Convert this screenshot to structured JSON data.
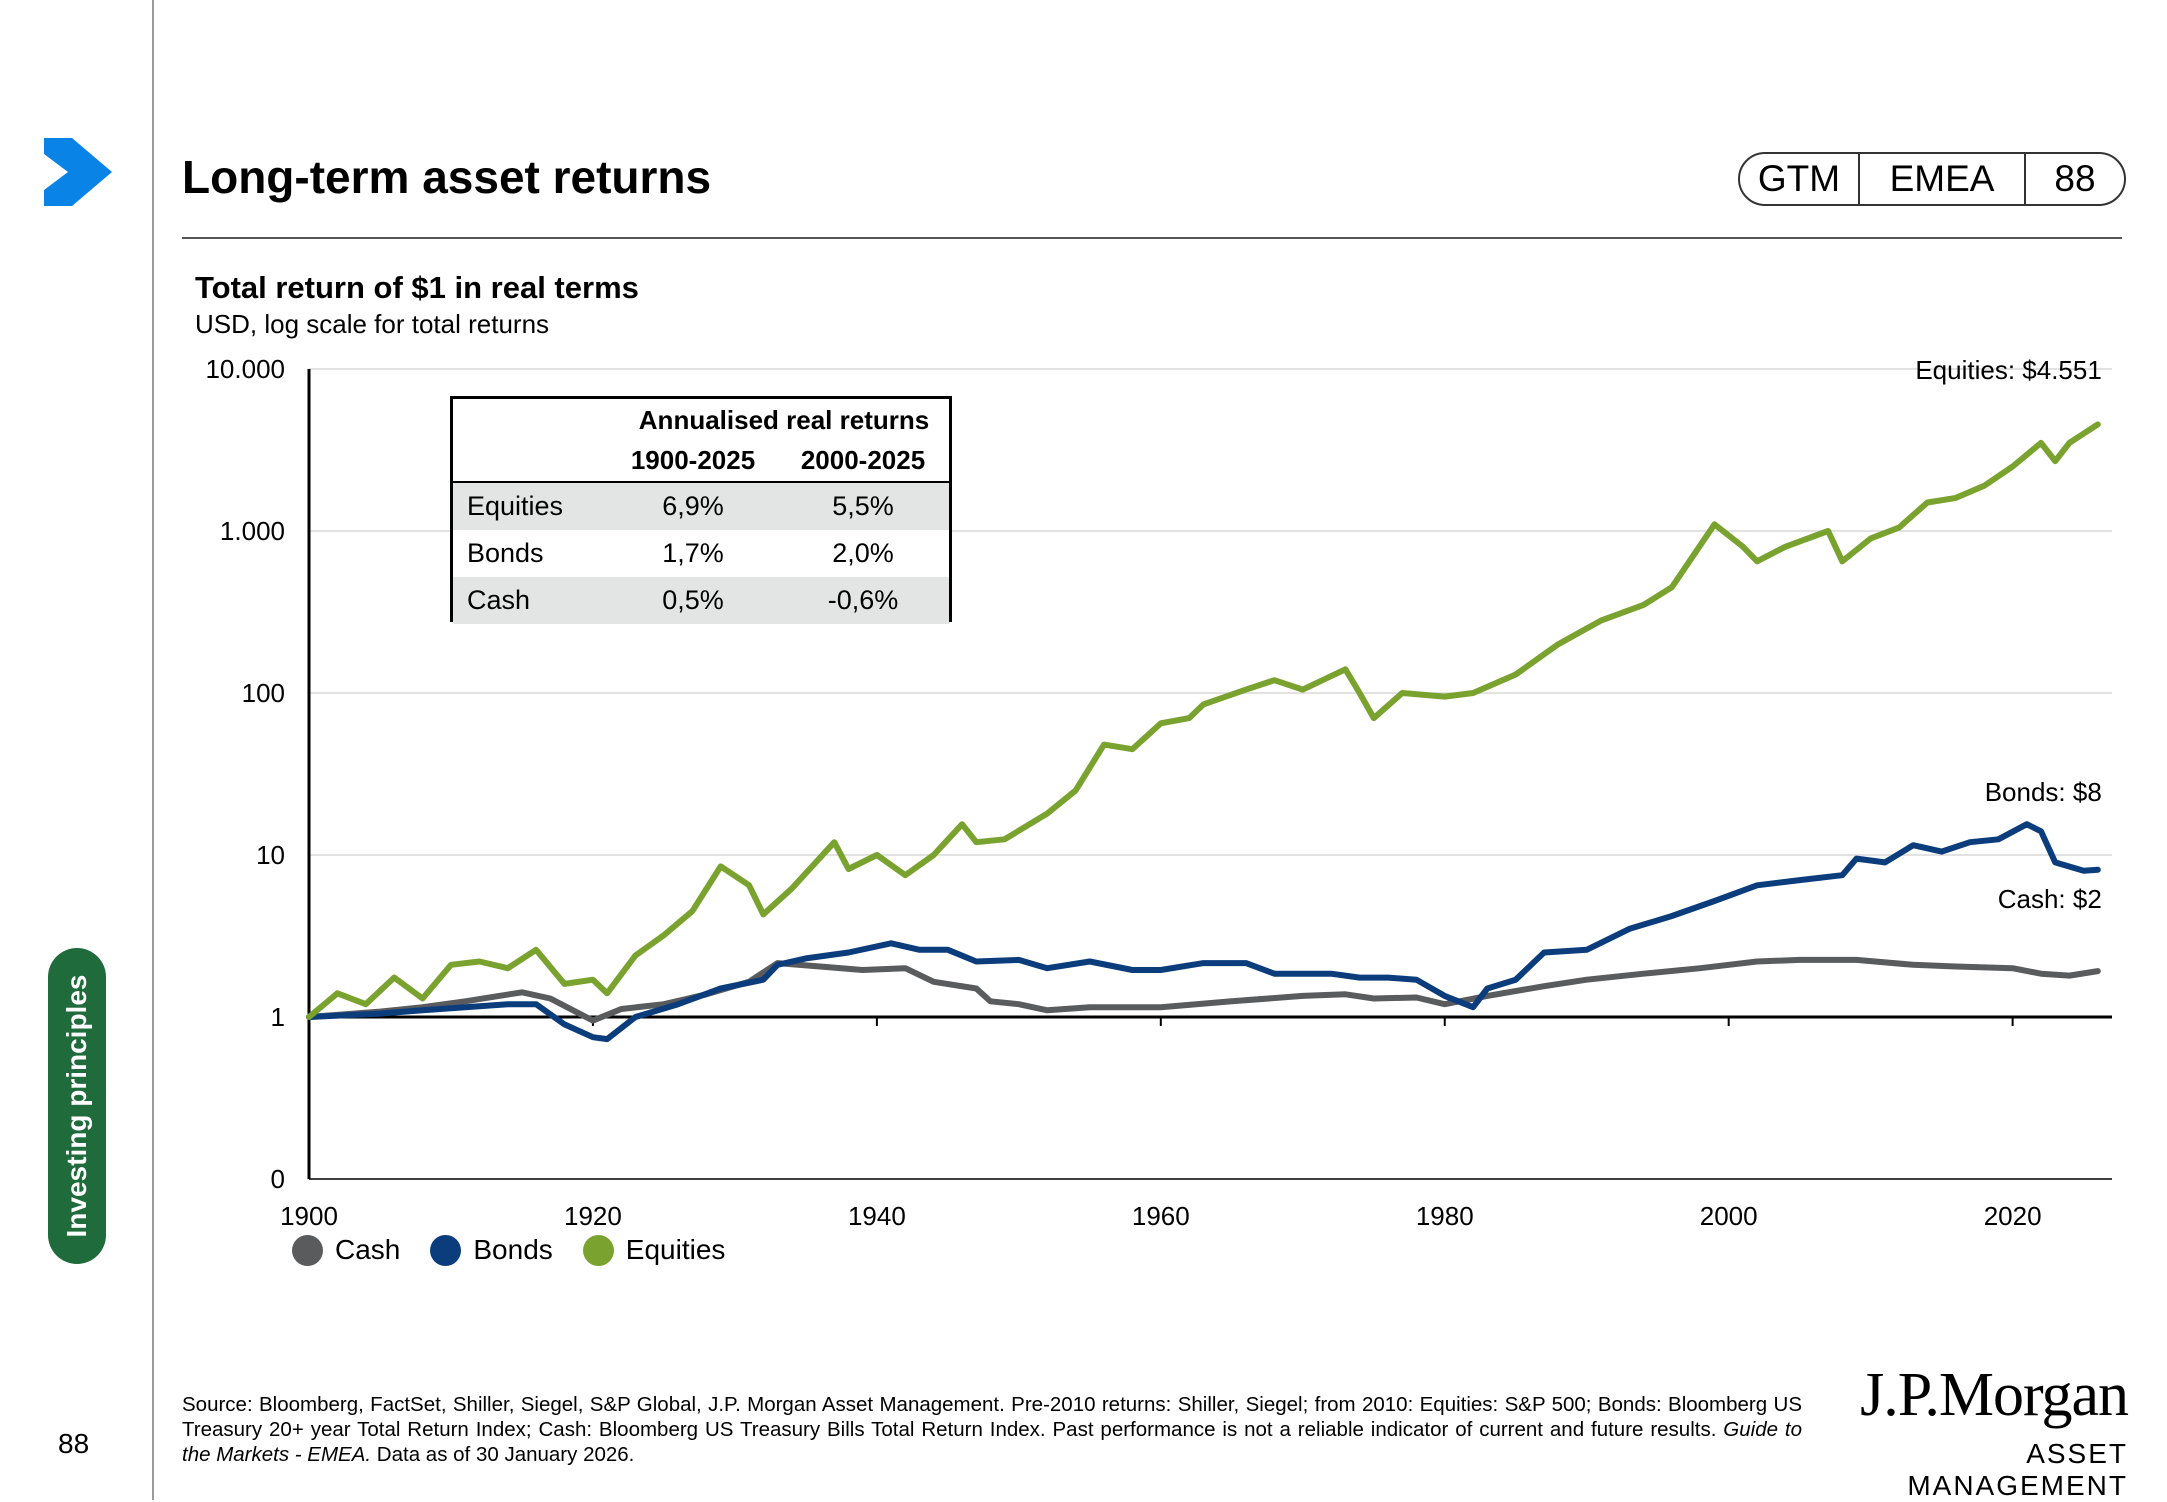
{
  "header": {
    "title": "Long-term asset returns",
    "tags": [
      "GTM",
      "EMEA",
      "88"
    ]
  },
  "sidebar": {
    "section_label": "Investing principles",
    "page_number": "88"
  },
  "colors": {
    "equities": "#7aa22f",
    "bonds": "#0b3d7d",
    "cash": "#5a5b5d",
    "accent": "#0a83e6",
    "section": "#1f6b3b"
  },
  "table": {
    "heading": "Annualised real returns",
    "columns": [
      "1900-2025",
      "2000-2025"
    ],
    "rows": [
      {
        "name": "Equities",
        "v1": "6,9%",
        "v2": "5,5%"
      },
      {
        "name": "Bonds",
        "v1": "1,7%",
        "v2": "2,0%"
      },
      {
        "name": "Cash",
        "v1": "0,5%",
        "v2": "-0,6%"
      }
    ]
  },
  "chart_data": {
    "type": "line",
    "title": "Total return of $1 in real terms",
    "subtitle": "USD, log scale for total returns",
    "y_scale": "log",
    "yticks": [
      {
        "value": 0.1,
        "label": "0"
      },
      {
        "value": 1,
        "label": "1"
      },
      {
        "value": 10,
        "label": "10"
      },
      {
        "value": 100,
        "label": "100"
      },
      {
        "value": 1000,
        "label": "1.000"
      },
      {
        "value": 10000,
        "label": "10.000"
      }
    ],
    "xticks": [
      1900,
      1920,
      1940,
      1960,
      1980,
      2000,
      2020
    ],
    "xlim": [
      1900,
      2027
    ],
    "grid": true,
    "legend_position": "bottom-left",
    "end_labels": {
      "equities": "Equities: $4.551",
      "bonds": "Bonds: $8",
      "cash": "Cash: $2"
    },
    "series": [
      {
        "name": "Cash",
        "key": "cash",
        "points": [
          [
            1900,
            1
          ],
          [
            1905,
            1.08
          ],
          [
            1908,
            1.15
          ],
          [
            1911,
            1.25
          ],
          [
            1915,
            1.42
          ],
          [
            1917,
            1.3
          ],
          [
            1920,
            0.95
          ],
          [
            1922,
            1.12
          ],
          [
            1925,
            1.2
          ],
          [
            1928,
            1.38
          ],
          [
            1931,
            1.65
          ],
          [
            1933,
            2.15
          ],
          [
            1936,
            2.05
          ],
          [
            1939,
            1.95
          ],
          [
            1942,
            2.0
          ],
          [
            1944,
            1.65
          ],
          [
            1947,
            1.5
          ],
          [
            1948,
            1.25
          ],
          [
            1950,
            1.2
          ],
          [
            1952,
            1.1
          ],
          [
            1955,
            1.15
          ],
          [
            1960,
            1.15
          ],
          [
            1965,
            1.25
          ],
          [
            1970,
            1.35
          ],
          [
            1973,
            1.38
          ],
          [
            1975,
            1.3
          ],
          [
            1978,
            1.32
          ],
          [
            1980,
            1.2
          ],
          [
            1983,
            1.35
          ],
          [
            1987,
            1.55
          ],
          [
            1990,
            1.7
          ],
          [
            1994,
            1.85
          ],
          [
            1998,
            2.0
          ],
          [
            2002,
            2.2
          ],
          [
            2005,
            2.25
          ],
          [
            2009,
            2.25
          ],
          [
            2013,
            2.1
          ],
          [
            2016,
            2.05
          ],
          [
            2020,
            2.0
          ],
          [
            2022,
            1.85
          ],
          [
            2024,
            1.8
          ],
          [
            2026,
            1.92
          ]
        ]
      },
      {
        "name": "Bonds",
        "key": "bonds",
        "points": [
          [
            1900,
            1
          ],
          [
            1905,
            1.05
          ],
          [
            1908,
            1.1
          ],
          [
            1911,
            1.15
          ],
          [
            1914,
            1.2
          ],
          [
            1916,
            1.2
          ],
          [
            1918,
            0.9
          ],
          [
            1920,
            0.75
          ],
          [
            1921,
            0.73
          ],
          [
            1923,
            1.0
          ],
          [
            1926,
            1.2
          ],
          [
            1929,
            1.5
          ],
          [
            1932,
            1.7
          ],
          [
            1933,
            2.1
          ],
          [
            1935,
            2.3
          ],
          [
            1938,
            2.5
          ],
          [
            1941,
            2.85
          ],
          [
            1943,
            2.6
          ],
          [
            1945,
            2.6
          ],
          [
            1947,
            2.2
          ],
          [
            1950,
            2.25
          ],
          [
            1952,
            2.0
          ],
          [
            1955,
            2.2
          ],
          [
            1958,
            1.95
          ],
          [
            1960,
            1.95
          ],
          [
            1963,
            2.15
          ],
          [
            1966,
            2.15
          ],
          [
            1968,
            1.85
          ],
          [
            1972,
            1.85
          ],
          [
            1974,
            1.75
          ],
          [
            1976,
            1.75
          ],
          [
            1978,
            1.7
          ],
          [
            1980,
            1.35
          ],
          [
            1982,
            1.15
          ],
          [
            1983,
            1.5
          ],
          [
            1985,
            1.7
          ],
          [
            1987,
            2.5
          ],
          [
            1990,
            2.6
          ],
          [
            1993,
            3.5
          ],
          [
            1996,
            4.2
          ],
          [
            1999,
            5.2
          ],
          [
            2002,
            6.5
          ],
          [
            2005,
            7.0
          ],
          [
            2008,
            7.5
          ],
          [
            2009,
            9.5
          ],
          [
            2011,
            9.0
          ],
          [
            2013,
            11.5
          ],
          [
            2015,
            10.5
          ],
          [
            2017,
            12.0
          ],
          [
            2019,
            12.5
          ],
          [
            2021,
            15.5
          ],
          [
            2022,
            14.0
          ],
          [
            2023,
            9.0
          ],
          [
            2025,
            8.0
          ],
          [
            2026,
            8.1
          ]
        ]
      },
      {
        "name": "Equities",
        "key": "equities",
        "points": [
          [
            1900,
            1
          ],
          [
            1902,
            1.4
          ],
          [
            1904,
            1.2
          ],
          [
            1906,
            1.75
          ],
          [
            1908,
            1.3
          ],
          [
            1910,
            2.1
          ],
          [
            1912,
            2.2
          ],
          [
            1914,
            2.0
          ],
          [
            1916,
            2.6
          ],
          [
            1918,
            1.6
          ],
          [
            1920,
            1.7
          ],
          [
            1921,
            1.4
          ],
          [
            1923,
            2.4
          ],
          [
            1925,
            3.2
          ],
          [
            1927,
            4.5
          ],
          [
            1929,
            8.5
          ],
          [
            1931,
            6.5
          ],
          [
            1932,
            4.3
          ],
          [
            1934,
            6.2
          ],
          [
            1937,
            12.0
          ],
          [
            1938,
            8.2
          ],
          [
            1940,
            10.0
          ],
          [
            1942,
            7.5
          ],
          [
            1944,
            10.0
          ],
          [
            1946,
            15.5
          ],
          [
            1947,
            12.0
          ],
          [
            1949,
            12.5
          ],
          [
            1952,
            18.0
          ],
          [
            1954,
            25.0
          ],
          [
            1956,
            48.0
          ],
          [
            1958,
            45.0
          ],
          [
            1960,
            65.0
          ],
          [
            1962,
            70.0
          ],
          [
            1963,
            85.0
          ],
          [
            1966,
            105.0
          ],
          [
            1968,
            120.0
          ],
          [
            1970,
            105.0
          ],
          [
            1973,
            140.0
          ],
          [
            1974,
            100.0
          ],
          [
            1975,
            70.0
          ],
          [
            1977,
            100.0
          ],
          [
            1980,
            95.0
          ],
          [
            1982,
            100.0
          ],
          [
            1985,
            130.0
          ],
          [
            1988,
            200.0
          ],
          [
            1991,
            280.0
          ],
          [
            1994,
            350.0
          ],
          [
            1996,
            450.0
          ],
          [
            1999,
            1100.0
          ],
          [
            2001,
            800.0
          ],
          [
            2002,
            650.0
          ],
          [
            2004,
            800.0
          ],
          [
            2007,
            1000.0
          ],
          [
            2008,
            650.0
          ],
          [
            2010,
            900.0
          ],
          [
            2012,
            1050.0
          ],
          [
            2014,
            1500.0
          ],
          [
            2016,
            1600.0
          ],
          [
            2018,
            1900.0
          ],
          [
            2020,
            2500.0
          ],
          [
            2022,
            3500.0
          ],
          [
            2023,
            2700.0
          ],
          [
            2024,
            3500.0
          ],
          [
            2026,
            4551.0
          ]
        ]
      }
    ]
  },
  "footer": {
    "source_pre": "Source: Bloomberg, FactSet, Shiller, Siegel, S&P Global, J.P. Morgan Asset Management. Pre-2010 returns: Shiller, Siegel; from 2010: Equities: S&P 500; Bonds: Bloomberg US Treasury 20+ year Total Return Index; Cash: Bloomberg US Treasury Bills Total Return Index. Past performance is not a reliable indicator of current and future results. ",
    "source_italic": "Guide to the Markets - EMEA.",
    "source_post": " Data as of 30 January 2026.",
    "logo_main": "J.P.Morgan",
    "logo_sub": "ASSET MANAGEMENT"
  }
}
